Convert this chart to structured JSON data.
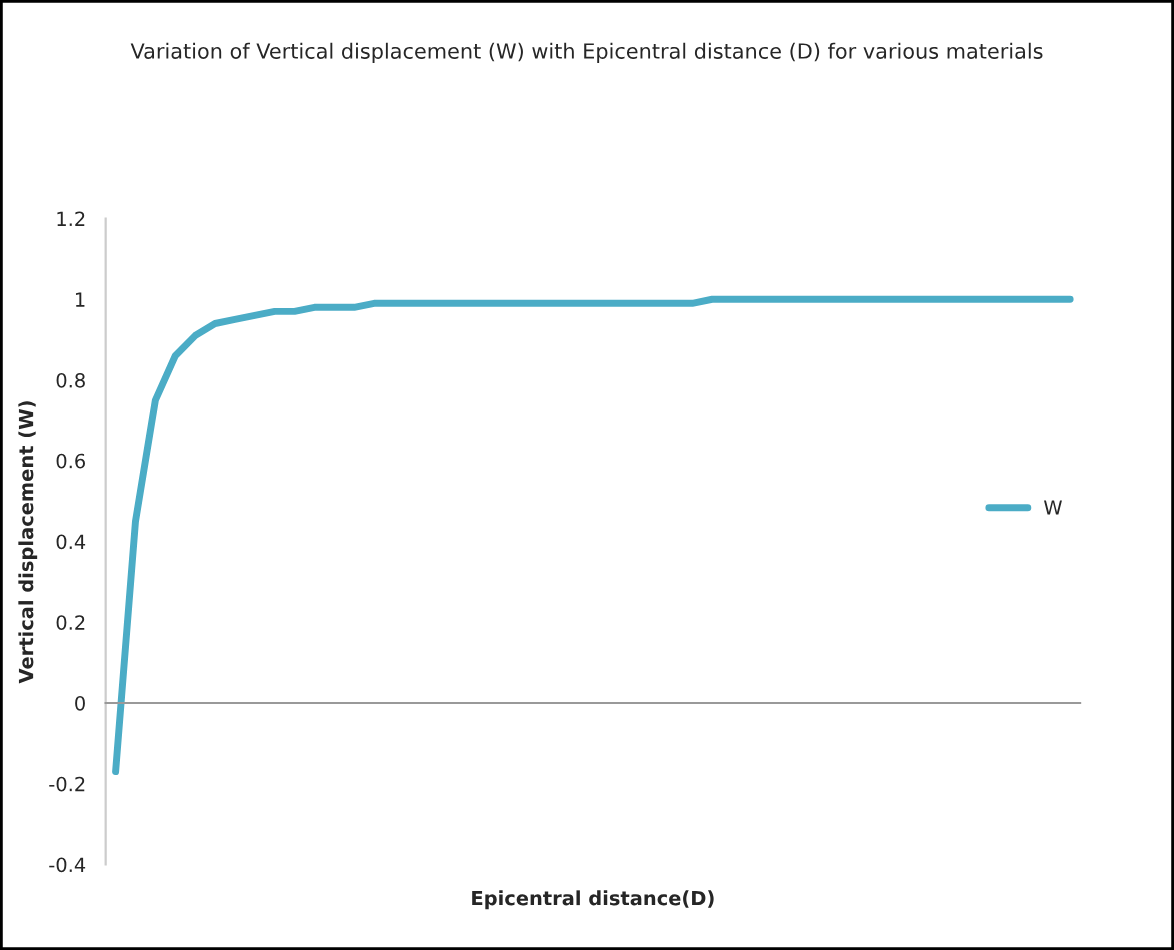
{
  "chart_data": {
    "type": "line",
    "title": "Variation of Vertical displacement (W) with Epicentral distance (D) for various materials",
    "xlabel": "Epicentral distance(D)",
    "ylabel": "Vertical displacement (W)",
    "categories": [
      null,
      null,
      null,
      null,
      null,
      null,
      null,
      null,
      null,
      null,
      null,
      null,
      null,
      null,
      null,
      null,
      null,
      null,
      null,
      null,
      null,
      null,
      null,
      null,
      null,
      null,
      null,
      null,
      null,
      null,
      null,
      null,
      null,
      null,
      null,
      null,
      null,
      null,
      null,
      null,
      null,
      null,
      null,
      null,
      null,
      null,
      null,
      null,
      null
    ],
    "series": [
      {
        "name": "W",
        "color": "#4bacc6",
        "values": [
          -0.17,
          0.45,
          0.75,
          0.86,
          0.91,
          0.94,
          0.95,
          0.96,
          0.97,
          0.97,
          0.98,
          0.98,
          0.98,
          0.99,
          0.99,
          0.99,
          0.99,
          0.99,
          0.99,
          0.99,
          0.99,
          0.99,
          0.99,
          0.99,
          0.99,
          0.99,
          0.99,
          0.99,
          0.99,
          0.99,
          1.0,
          1.0,
          1.0,
          1.0,
          1.0,
          1.0,
          1.0,
          1.0,
          1.0,
          1.0,
          1.0,
          1.0,
          1.0,
          1.0,
          1.0,
          1.0,
          1.0,
          1.0,
          1.0
        ]
      }
    ],
    "ylim": [
      -0.4,
      1.2
    ],
    "yticks": [
      -0.4,
      -0.2,
      0,
      0.2,
      0.4,
      0.6,
      0.8,
      1,
      1.2
    ],
    "legend": "right",
    "line_style": "solid",
    "tick_labels": "y"
  }
}
